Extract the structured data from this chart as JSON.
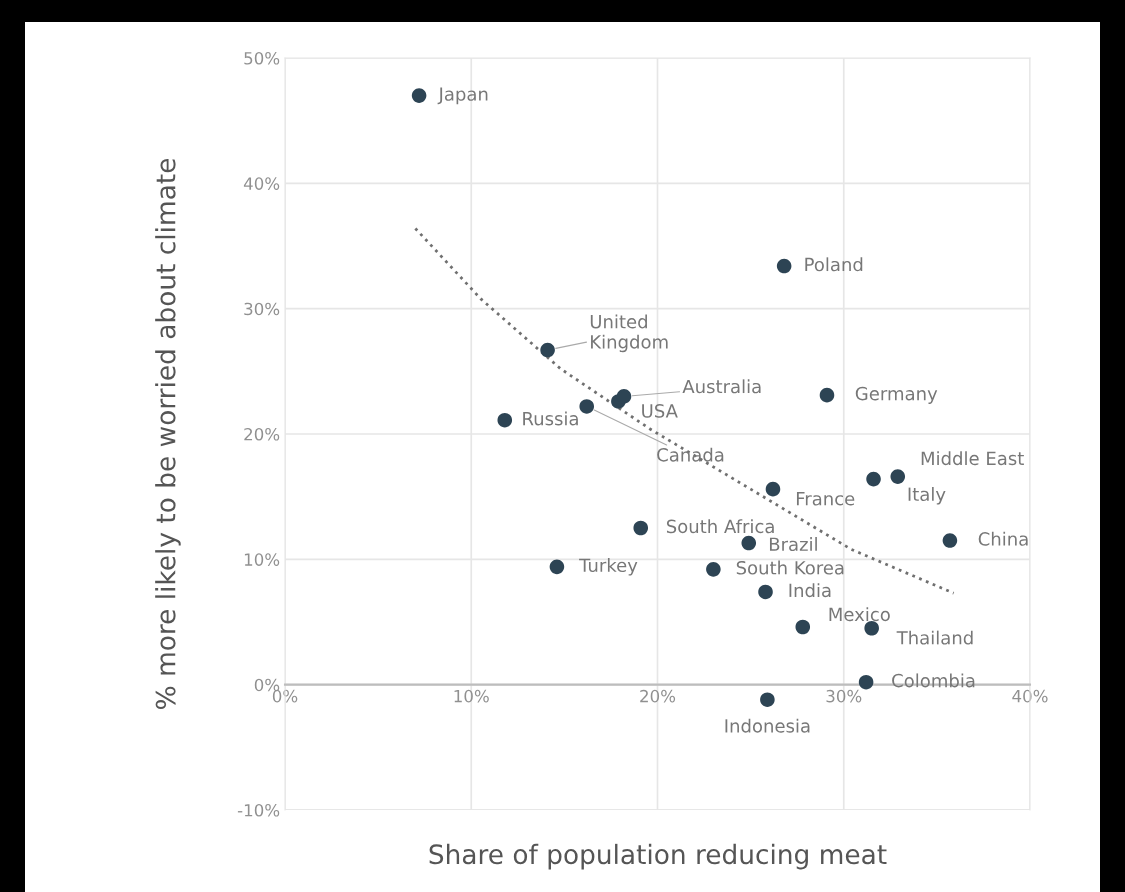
{
  "chart_data": {
    "type": "scatter",
    "xlabel": "Share of population reducing meat",
    "ylabel": "% more likely to be worried about climate",
    "xlim": [
      0,
      40
    ],
    "ylim": [
      -10,
      50
    ],
    "xticks": [
      {
        "value": 0,
        "label": "0%"
      },
      {
        "value": 10,
        "label": "10%"
      },
      {
        "value": 20,
        "label": "20%"
      },
      {
        "value": 30,
        "label": "30%"
      },
      {
        "value": 40,
        "label": "40%"
      }
    ],
    "yticks": [
      {
        "value": -10,
        "label": "-10%"
      },
      {
        "value": 0,
        "label": "0%"
      },
      {
        "value": 10,
        "label": "10%"
      },
      {
        "value": 20,
        "label": "20%"
      },
      {
        "value": 30,
        "label": "30%"
      },
      {
        "value": 40,
        "label": "40%"
      },
      {
        "value": 50,
        "label": "50%"
      }
    ],
    "grid": true,
    "marker": "circle",
    "series": [
      {
        "color": "#2d4454",
        "x": [
          7.2,
          26.8,
          14.1,
          11.8,
          16.2,
          17.9,
          18.2,
          29.1,
          32.9,
          31.6,
          26.2,
          35.7,
          19.1,
          24.9,
          14.6,
          23.0,
          25.8,
          27.8,
          31.5,
          31.2,
          25.9
        ],
        "values": [
          47.0,
          33.4,
          26.7,
          21.1,
          22.2,
          22.6,
          23.0,
          23.1,
          16.6,
          16.4,
          15.6,
          11.5,
          12.5,
          11.3,
          9.4,
          9.2,
          7.4,
          4.6,
          4.5,
          0.2,
          -1.2
        ]
      },
      {
        "type": "line",
        "color": "#707070",
        "line_style": "dotted",
        "marker": "none",
        "x": [
          7.0,
          10.5,
          14.8,
          19.6,
          25.0,
          30.4,
          35.9
        ],
        "values": [
          36.4,
          30.8,
          25.2,
          20.4,
          15.6,
          10.8,
          7.3
        ]
      }
    ],
    "annotations": [
      {
        "text": "Japan",
        "x": 7.2,
        "y": 47.0
      },
      {
        "text": "Poland",
        "x": 26.8,
        "y": 33.4
      },
      {
        "text": "United\nKingdom",
        "x": 14.1,
        "y": 26.7
      },
      {
        "text": "Russia",
        "x": 11.8,
        "y": 21.1
      },
      {
        "text": "Canada",
        "x": 16.2,
        "y": 22.2
      },
      {
        "text": "USA",
        "x": 17.9,
        "y": 22.6
      },
      {
        "text": "Australia",
        "x": 18.2,
        "y": 23.0
      },
      {
        "text": "Germany",
        "x": 29.1,
        "y": 23.1
      },
      {
        "text": "Middle East",
        "x": 32.9,
        "y": 16.6
      },
      {
        "text": "Italy",
        "x": 31.6,
        "y": 16.4
      },
      {
        "text": "France",
        "x": 26.2,
        "y": 15.6
      },
      {
        "text": "China",
        "x": 35.7,
        "y": 11.5
      },
      {
        "text": "South Africa",
        "x": 19.1,
        "y": 12.5
      },
      {
        "text": "Brazil",
        "x": 24.9,
        "y": 11.3
      },
      {
        "text": "Turkey",
        "x": 14.6,
        "y": 9.4
      },
      {
        "text": "South Korea",
        "x": 23.0,
        "y": 9.2
      },
      {
        "text": "India",
        "x": 25.8,
        "y": 7.4
      },
      {
        "text": "Mexico",
        "x": 27.8,
        "y": 4.6
      },
      {
        "text": "Thailand",
        "x": 31.5,
        "y": 4.5
      },
      {
        "text": "Colombia",
        "x": 31.2,
        "y": 0.2
      },
      {
        "text": "Indonesia",
        "x": 25.9,
        "y": -1.2
      }
    ]
  }
}
